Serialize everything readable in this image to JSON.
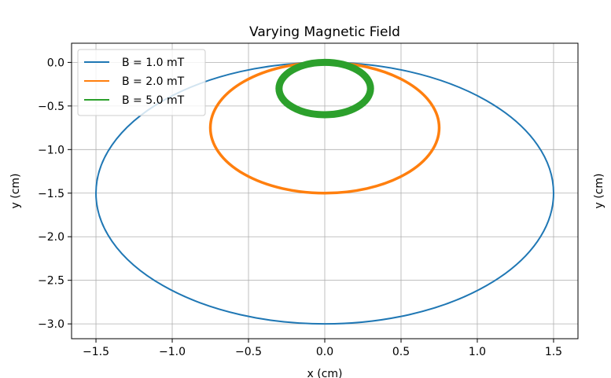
{
  "chart_data": {
    "type": "line",
    "title": "Varying Magnetic Field",
    "xlabel": "x (cm)",
    "ylabel": "y (cm)",
    "right_label": "y (cm)",
    "xlim": [
      -1.66,
      1.66
    ],
    "ylim": [
      -3.17,
      0.22
    ],
    "x_ticks": [
      -1.5,
      -1.0,
      -0.5,
      0.0,
      0.5,
      1.0,
      1.5
    ],
    "x_tick_labels": [
      "−1.5",
      "−1.0",
      "−0.5",
      "0.0",
      "0.5",
      "1.0",
      "1.5"
    ],
    "y_ticks": [
      0.0,
      -0.5,
      -1.0,
      -1.5,
      -2.0,
      -2.5,
      -3.0
    ],
    "y_tick_labels": [
      "0.0",
      "−0.5",
      "−1.0",
      "−1.5",
      "−2.0",
      "−2.5",
      "−3.0"
    ],
    "grid": true,
    "legend_position": "top-left",
    "series": [
      {
        "name": "B = 1.0 mT",
        "shape": "circle",
        "center": [
          0.0,
          -1.5
        ],
        "radius": 1.5,
        "color": "#1f77b4",
        "line_width": 2
      },
      {
        "name": "B = 2.0 mT",
        "shape": "circle",
        "center": [
          0.0,
          -0.75
        ],
        "radius": 0.75,
        "color": "#ff7f0e",
        "line_width": 3.5
      },
      {
        "name": "B = 5.0 mT",
        "shape": "circle",
        "center": [
          0.0,
          -0.3
        ],
        "radius": 0.3,
        "color": "#2ca02c",
        "line_width": 9
      }
    ]
  }
}
